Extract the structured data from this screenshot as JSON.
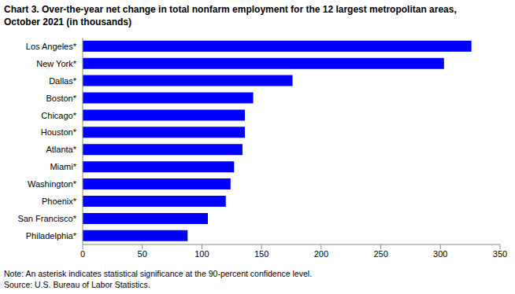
{
  "chart_data": {
    "type": "bar",
    "title": "Chart 3. Over-the-year net change in total nonfarm employment for the 12 largest metropolitan areas, October 2021 (in thousands)",
    "categories": [
      "Los Angeles*",
      "New York*",
      "Dallas*",
      "Boston*",
      "Chicago*",
      "Houston*",
      "Atlanta*",
      "Miami*",
      "Washington*",
      "Phoenix*",
      "San Francisco*",
      "Philadelphia*"
    ],
    "values": [
      326,
      303,
      176,
      143,
      136,
      136,
      134,
      127,
      124,
      120,
      105,
      88
    ],
    "color": "#0000ff",
    "xlim": [
      0,
      350
    ],
    "xticks": [
      0,
      50,
      100,
      150,
      200,
      250,
      300,
      350
    ],
    "orientation": "horizontal",
    "grid": false,
    "annotations": [
      "Note: An asterisk indicates statistical significance at the 90-percent confidence level.",
      "Source: U.S. Bureau of Labor Statistics."
    ]
  }
}
